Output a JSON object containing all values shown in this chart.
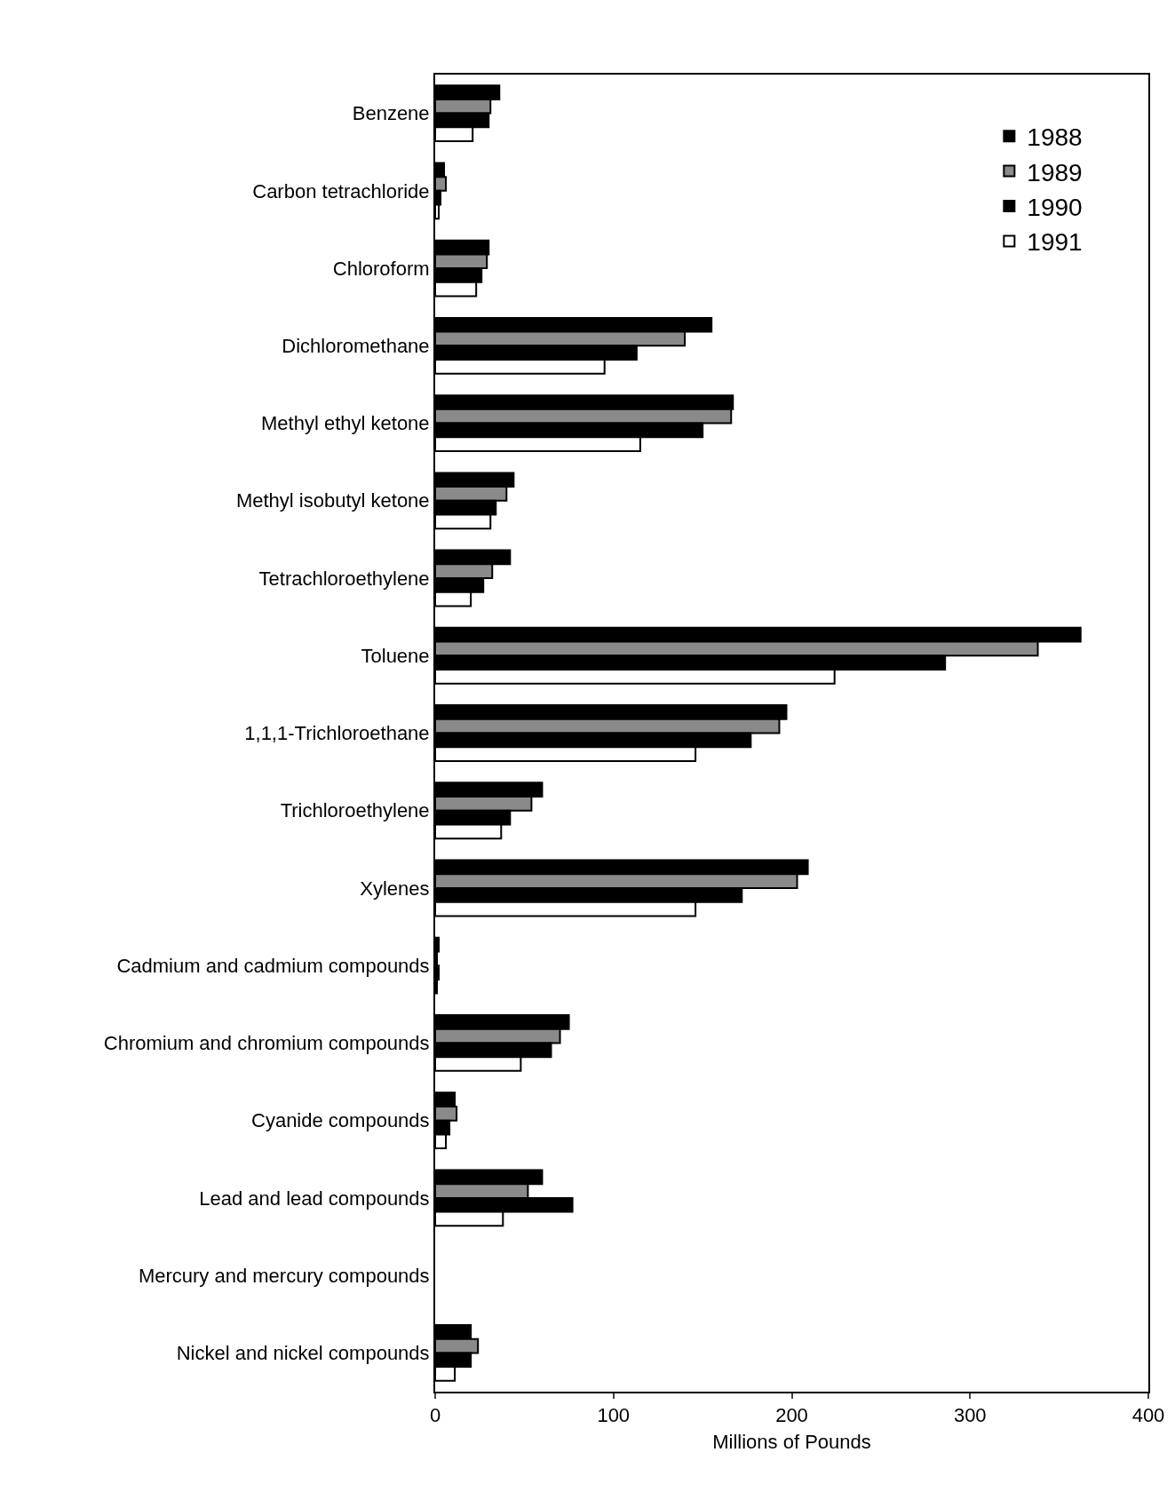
{
  "chart_data": {
    "type": "bar",
    "orientation": "horizontal",
    "xlabel": "Millions of Pounds",
    "categories": [
      "Benzene",
      "Carbon tetrachloride",
      "Chloroform",
      "Dichloromethane",
      "Methyl ethyl ketone",
      "Methyl isobutyl ketone",
      "Tetrachloroethylene",
      "Toluene",
      "1,1,1-Trichloroethane",
      "Trichloroethylene",
      "Xylenes",
      "Cadmium and cadmium compounds",
      "Chromium and chromium compounds",
      "Cyanide compounds",
      "Lead and lead compounds",
      "Mercury and mercury compounds",
      "Nickel and nickel compounds"
    ],
    "series": [
      {
        "name": "1988",
        "color": "#000000",
        "values": [
          36,
          5,
          30,
          155,
          167,
          44,
          42,
          362,
          197,
          60,
          209,
          2,
          75,
          11,
          60,
          0,
          20
        ]
      },
      {
        "name": "1989",
        "color": "#8a8a8a",
        "values": [
          31,
          6,
          29,
          140,
          166,
          40,
          32,
          338,
          193,
          54,
          203,
          1,
          70,
          12,
          52,
          0,
          24
        ]
      },
      {
        "name": "1990",
        "color": "#000000",
        "values": [
          30,
          3,
          26,
          113,
          150,
          34,
          27,
          286,
          177,
          42,
          172,
          2,
          65,
          8,
          77,
          0,
          20
        ]
      },
      {
        "name": "1991",
        "color": "#ffffff",
        "values": [
          21,
          2,
          23,
          95,
          115,
          31,
          20,
          224,
          146,
          37,
          146,
          1,
          48,
          6,
          38,
          0,
          11
        ]
      }
    ],
    "xlim": [
      0,
      400
    ],
    "xticks": [
      0,
      100,
      200,
      300,
      400
    ],
    "grid": false,
    "legend": "top right"
  }
}
